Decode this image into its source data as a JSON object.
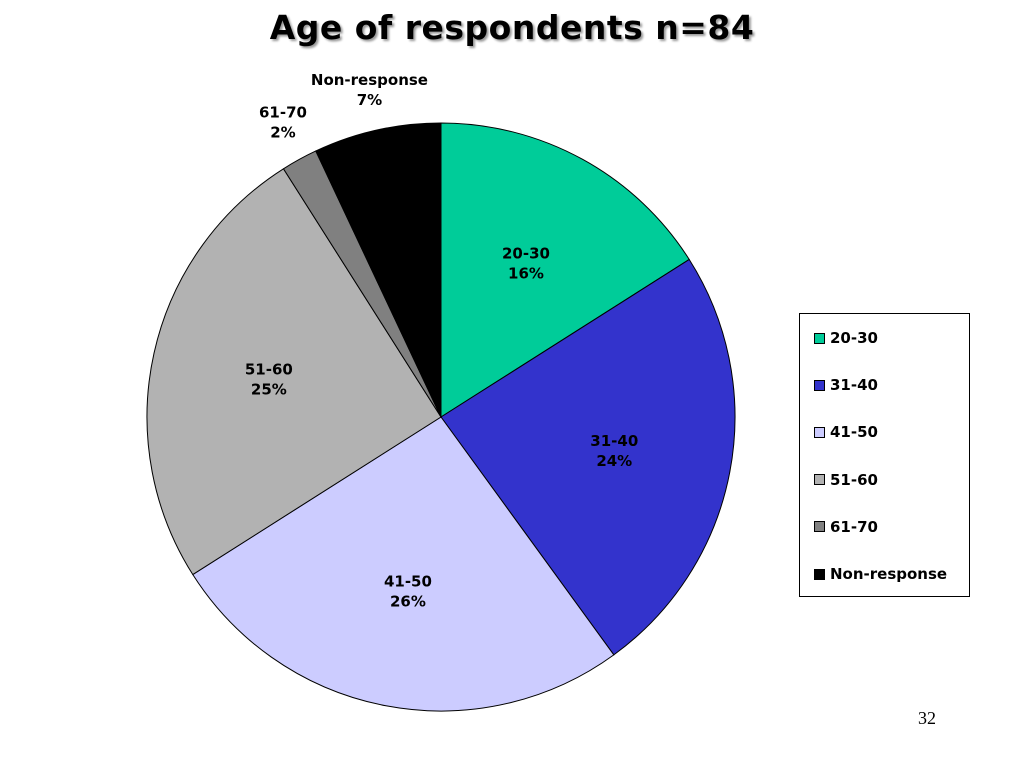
{
  "slide": {
    "page_number": "32"
  },
  "chart_data": {
    "type": "pie",
    "title": "Age of respondents  n=84",
    "categories": [
      "20-30",
      "31-40",
      "41-50",
      "51-60",
      "61-70",
      "Non-response"
    ],
    "values": [
      16,
      24,
      26,
      25,
      2,
      7
    ],
    "labels": [
      "16%",
      "24%",
      "26%",
      "25%",
      "2%",
      "7%"
    ],
    "colors": [
      "#00cc99",
      "#3333cc",
      "#ccccff",
      "#b2b2b2",
      "#808080",
      "#000000"
    ],
    "start_angle_deg": 0,
    "direction": "clockwise",
    "legend_position": "right"
  }
}
